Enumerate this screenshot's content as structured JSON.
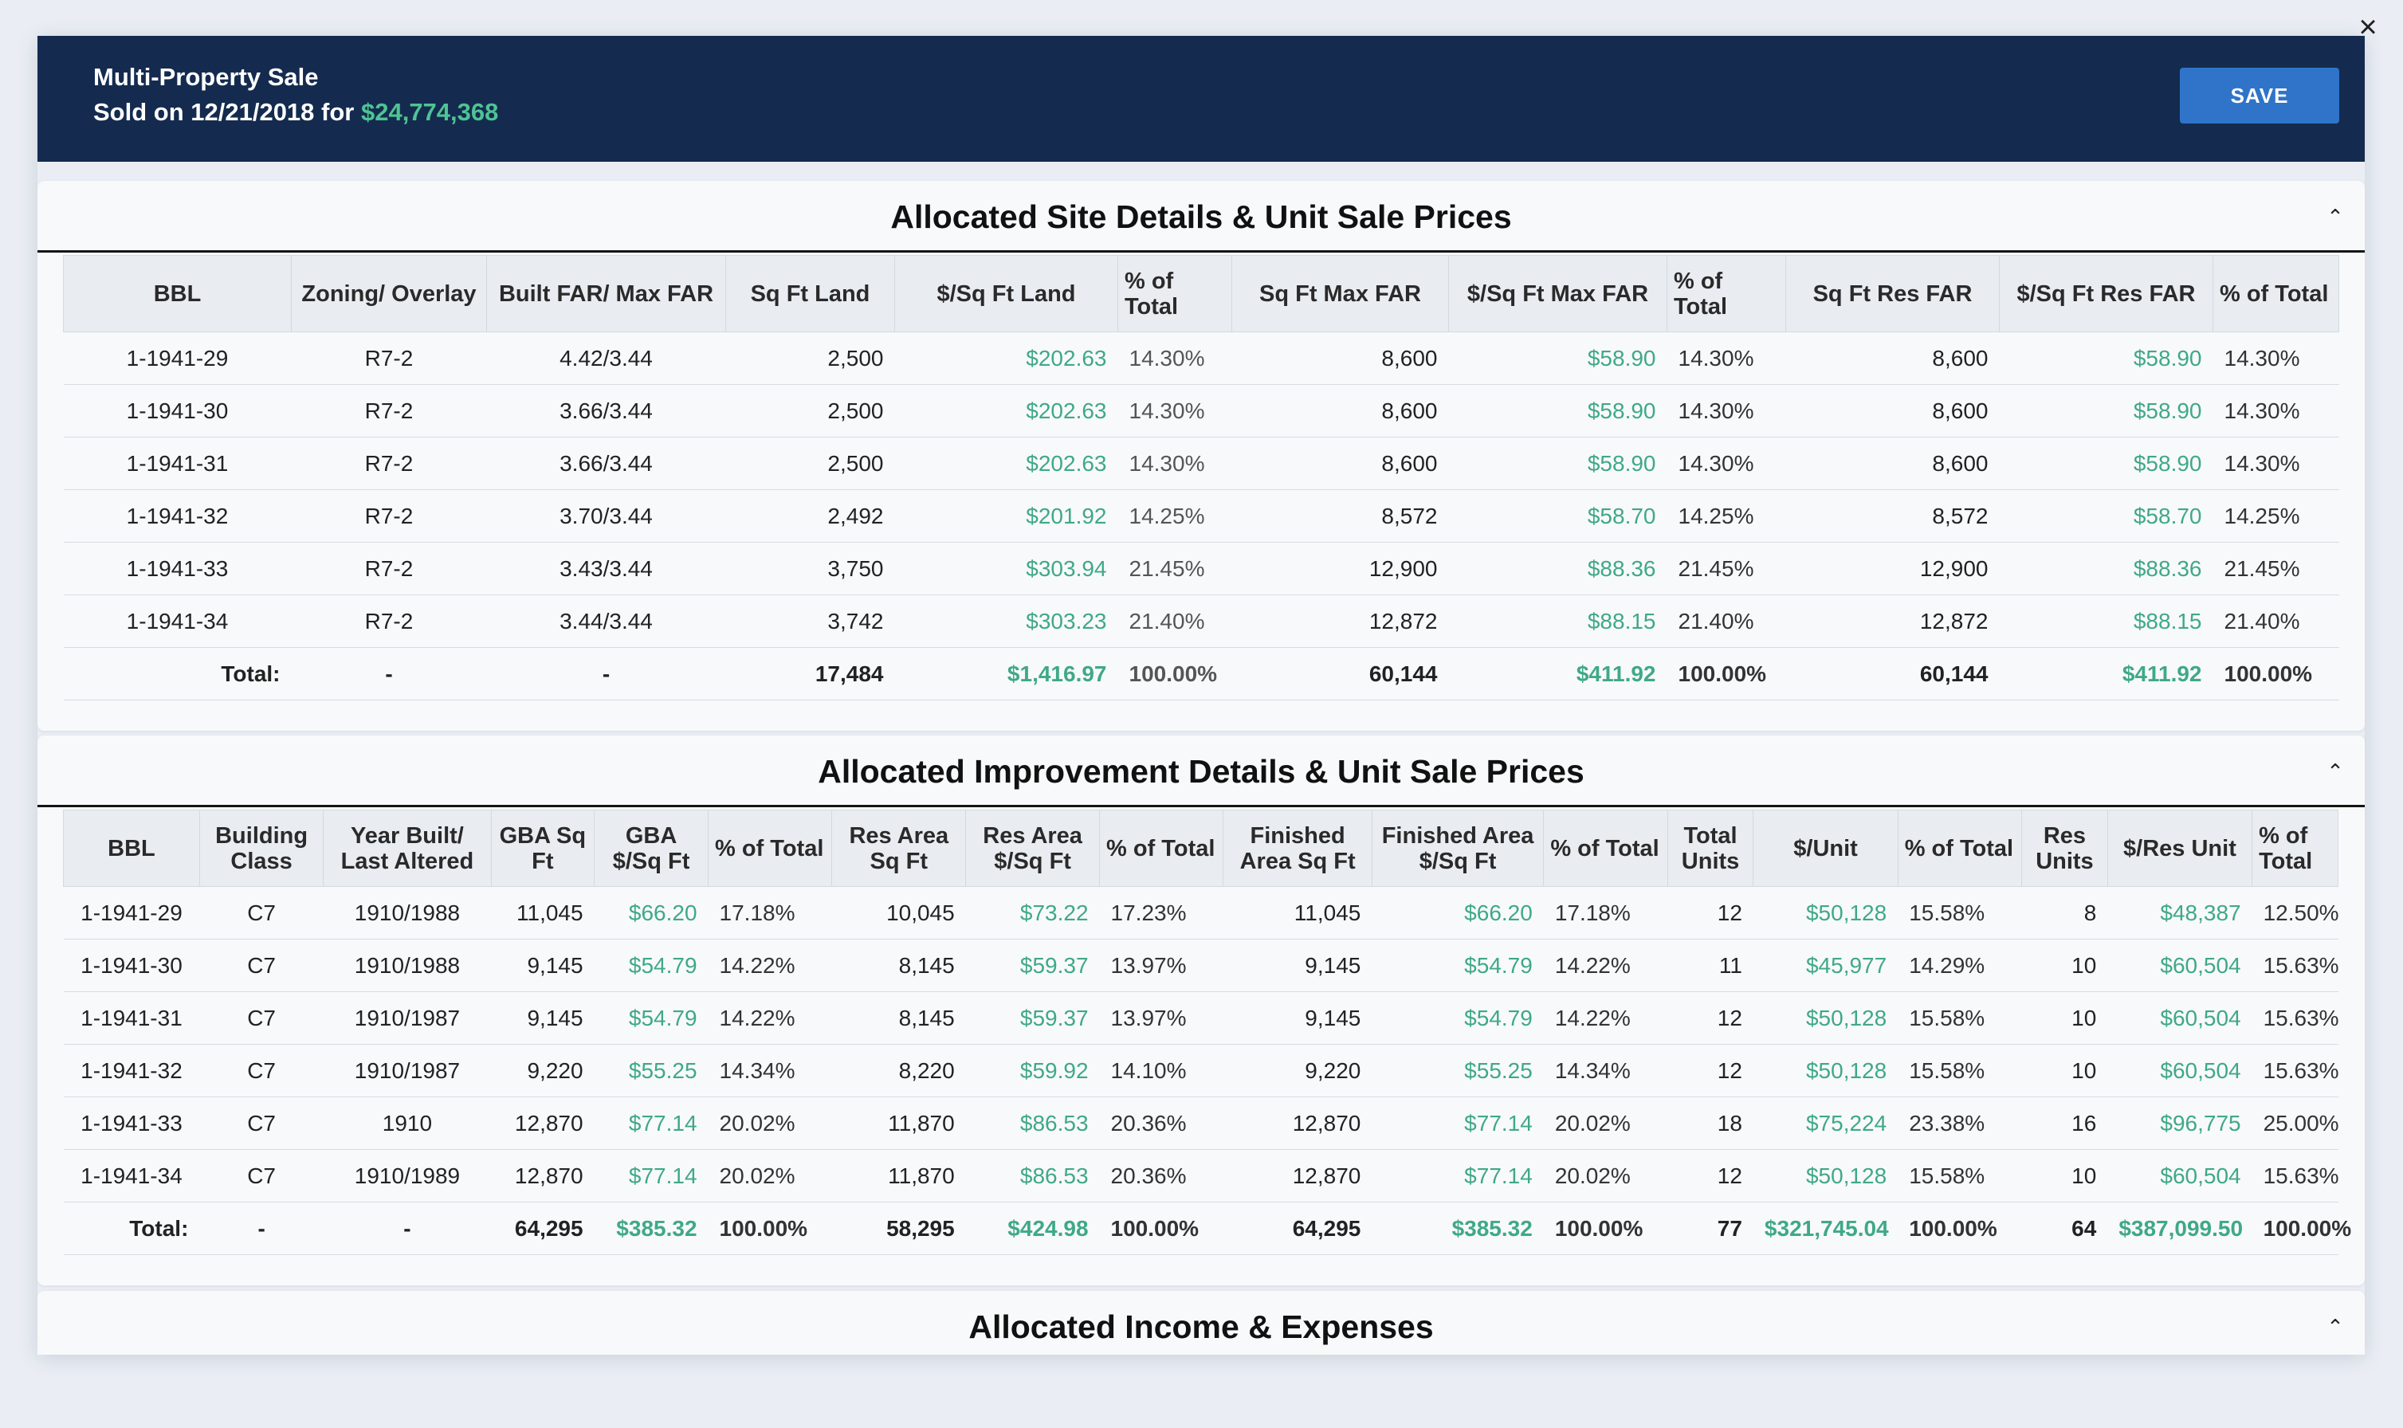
{
  "header": {
    "title": "Multi-Property Sale",
    "sold_prefix": "Sold on 12/21/2018 for",
    "sale_price": "$24,774,368",
    "save_label": "SAVE"
  },
  "close_glyph": "×",
  "chevron_glyph": "⌃",
  "site": {
    "title": "Allocated Site Details & Unit Sale Prices",
    "columns": [
      "BBL",
      "Zoning/ Overlay",
      "Built FAR/ Max FAR",
      "Sq Ft Land",
      "$/Sq Ft Land",
      "% of Total",
      "Sq Ft Max FAR",
      "$/Sq Ft Max FAR",
      "% of Total",
      "Sq Ft Res FAR",
      "$/Sq Ft Res FAR",
      "% of Total"
    ],
    "rows": [
      [
        "1-1941-29",
        "R7-2",
        "4.42/3.44",
        "2,500",
        "$202.63",
        "14.30%",
        "8,600",
        "$58.90",
        "14.30%",
        "8,600",
        "$58.90",
        "14.30%"
      ],
      [
        "1-1941-30",
        "R7-2",
        "3.66/3.44",
        "2,500",
        "$202.63",
        "14.30%",
        "8,600",
        "$58.90",
        "14.30%",
        "8,600",
        "$58.90",
        "14.30%"
      ],
      [
        "1-1941-31",
        "R7-2",
        "3.66/3.44",
        "2,500",
        "$202.63",
        "14.30%",
        "8,600",
        "$58.90",
        "14.30%",
        "8,600",
        "$58.90",
        "14.30%"
      ],
      [
        "1-1941-32",
        "R7-2",
        "3.70/3.44",
        "2,492",
        "$201.92",
        "14.25%",
        "8,572",
        "$58.70",
        "14.25%",
        "8,572",
        "$58.70",
        "14.25%"
      ],
      [
        "1-1941-33",
        "R7-2",
        "3.43/3.44",
        "3,750",
        "$303.94",
        "21.45%",
        "12,900",
        "$88.36",
        "21.45%",
        "12,900",
        "$88.36",
        "21.45%"
      ],
      [
        "1-1941-34",
        "R7-2",
        "3.44/3.44",
        "3,742",
        "$303.23",
        "21.40%",
        "12,872",
        "$88.15",
        "21.40%",
        "12,872",
        "$88.15",
        "21.40%"
      ]
    ],
    "total": [
      "Total:",
      "-",
      "-",
      "17,484",
      "$1,416.97",
      "100.00%",
      "60,144",
      "$411.92",
      "100.00%",
      "60,144",
      "$411.92",
      "100.00%"
    ]
  },
  "improvement": {
    "title": "Allocated Improvement Details & Unit Sale Prices",
    "columns": [
      "BBL",
      "Building Class",
      "Year Built/ Last Altered",
      "GBA Sq Ft",
      "GBA $/Sq Ft",
      "% of Total",
      "Res Area Sq Ft",
      "Res Area $/Sq Ft",
      "% of Total",
      "Finished Area Sq Ft",
      "Finished Area $/Sq Ft",
      "% of Total",
      "Total Units",
      "$/Unit",
      "% of Total",
      "Res Units",
      "$/Res Unit",
      "% of Total"
    ],
    "rows": [
      [
        "1-1941-29",
        "C7",
        "1910/1988",
        "11,045",
        "$66.20",
        "17.18%",
        "10,045",
        "$73.22",
        "17.23%",
        "11,045",
        "$66.20",
        "17.18%",
        "12",
        "$50,128",
        "15.58%",
        "8",
        "$48,387",
        "12.50%"
      ],
      [
        "1-1941-30",
        "C7",
        "1910/1988",
        "9,145",
        "$54.79",
        "14.22%",
        "8,145",
        "$59.37",
        "13.97%",
        "9,145",
        "$54.79",
        "14.22%",
        "11",
        "$45,977",
        "14.29%",
        "10",
        "$60,504",
        "15.63%"
      ],
      [
        "1-1941-31",
        "C7",
        "1910/1987",
        "9,145",
        "$54.79",
        "14.22%",
        "8,145",
        "$59.37",
        "13.97%",
        "9,145",
        "$54.79",
        "14.22%",
        "12",
        "$50,128",
        "15.58%",
        "10",
        "$60,504",
        "15.63%"
      ],
      [
        "1-1941-32",
        "C7",
        "1910/1987",
        "9,220",
        "$55.25",
        "14.34%",
        "8,220",
        "$59.92",
        "14.10%",
        "9,220",
        "$55.25",
        "14.34%",
        "12",
        "$50,128",
        "15.58%",
        "10",
        "$60,504",
        "15.63%"
      ],
      [
        "1-1941-33",
        "C7",
        "1910",
        "12,870",
        "$77.14",
        "20.02%",
        "11,870",
        "$86.53",
        "20.36%",
        "12,870",
        "$77.14",
        "20.02%",
        "18",
        "$75,224",
        "23.38%",
        "16",
        "$96,775",
        "25.00%"
      ],
      [
        "1-1941-34",
        "C7",
        "1910/1989",
        "12,870",
        "$77.14",
        "20.02%",
        "11,870",
        "$86.53",
        "20.36%",
        "12,870",
        "$77.14",
        "20.02%",
        "12",
        "$50,128",
        "15.58%",
        "10",
        "$60,504",
        "15.63%"
      ]
    ],
    "total": [
      "Total:",
      "-",
      "-",
      "64,295",
      "$385.32",
      "100.00%",
      "58,295",
      "$424.98",
      "100.00%",
      "64,295",
      "$385.32",
      "100.00%",
      "77",
      "$321,745.04",
      "100.00%",
      "64",
      "$387,099.50",
      "100.00%"
    ]
  },
  "income": {
    "title": "Allocated Income & Expenses"
  },
  "colors": {
    "header_bg": "#142b4f",
    "accent_green": "#3fa985",
    "save_blue": "#2f74c8"
  }
}
